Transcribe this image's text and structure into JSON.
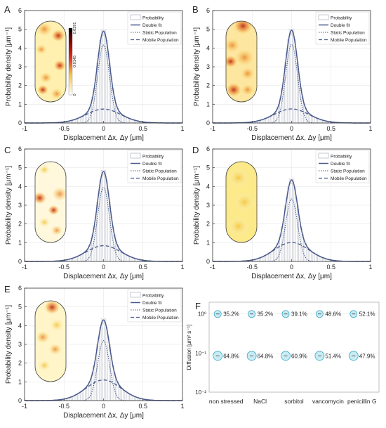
{
  "chart_data": [
    {
      "type": "bar",
      "panel_label": "A",
      "xlabel": "Displacement Δx, Δy [μm]",
      "ylabel": "Probability density [μm⁻¹]",
      "xlim": [
        -1,
        1
      ],
      "ylim": [
        0,
        6
      ],
      "xticks": [
        "-1",
        "-0.5",
        "0",
        "0.5",
        "1"
      ],
      "yticks": [
        "0",
        "1",
        "2",
        "3",
        "4",
        "5",
        "6"
      ],
      "legend": [
        "Probability",
        "Double fit",
        "Static Population",
        "Mobile Population"
      ],
      "legend_position": "top-right",
      "peak_double_fit": 4.9,
      "peak_static": 4.2,
      "peak_mobile": 0.75,
      "inset": "heatmap cell, heterogeneous with reddish spots",
      "colorbar_ticks": [
        "0.0291",
        "0.0145",
        "0"
      ]
    },
    {
      "type": "bar",
      "panel_label": "B",
      "xlabel": "Displacement Δx, Δy [μm]",
      "ylabel": "Probability density [μm⁻¹]",
      "xlim": [
        -1,
        1
      ],
      "ylim": [
        0,
        6
      ],
      "xticks": [
        "-1",
        "-0.5",
        "0",
        "0.5",
        "1"
      ],
      "yticks": [
        "0",
        "1",
        "2",
        "3",
        "4",
        "5",
        "6"
      ],
      "legend": [
        "Probability",
        "Double fit",
        "Static Population",
        "Mobile Population"
      ],
      "legend_position": "top-right",
      "peak_double_fit": 4.95,
      "peak_static": 4.2,
      "peak_mobile": 0.75
    },
    {
      "type": "bar",
      "panel_label": "C",
      "xlabel": "Displacement Δx, Δy [μm]",
      "ylabel": "Probability density [μm⁻¹]",
      "xlim": [
        -1,
        1
      ],
      "ylim": [
        0,
        6
      ],
      "xticks": [
        "-1",
        "-0.5",
        "0",
        "0.5",
        "1"
      ],
      "yticks": [
        "0",
        "1",
        "2",
        "3",
        "4",
        "5",
        "6"
      ],
      "legend": [
        "Probability",
        "Double fit",
        "Static Population",
        "Mobile Population"
      ],
      "legend_position": "top-right",
      "peak_double_fit": 4.8,
      "peak_static": 4.0,
      "peak_mobile": 0.85
    },
    {
      "type": "bar",
      "panel_label": "D",
      "xlabel": "Displacement Δx, Δy [μm]",
      "ylabel": "Probability density [μm⁻¹]",
      "xlim": [
        -1,
        1
      ],
      "ylim": [
        0,
        6
      ],
      "xticks": [
        "-1",
        "-0.5",
        "0",
        "0.5",
        "1"
      ],
      "yticks": [
        "0",
        "1",
        "2",
        "3",
        "4",
        "5",
        "6"
      ],
      "legend": [
        "Probability",
        "Double fit",
        "Static Population",
        "Mobile Population"
      ],
      "legend_position": "top-right",
      "peak_double_fit": 4.35,
      "peak_static": 3.3,
      "peak_mobile": 1.0
    },
    {
      "type": "bar",
      "panel_label": "E",
      "xlabel": "Displacement Δx, Δy [μm]",
      "ylabel": "Probability density [μm⁻¹]",
      "xlim": [
        -1,
        1
      ],
      "ylim": [
        0,
        6
      ],
      "xticks": [
        "-1",
        "-0.5",
        "0",
        "0.5",
        "1"
      ],
      "yticks": [
        "0",
        "1",
        "2",
        "3",
        "4",
        "5",
        "6"
      ],
      "legend": [
        "Probability",
        "Double fit",
        "Static Population",
        "Mobile Population"
      ],
      "legend_position": "top-right",
      "peak_double_fit": 4.3,
      "peak_static": 3.2,
      "peak_mobile": 1.1
    },
    {
      "type": "scatter",
      "panel_label": "F",
      "ylabel": "Diffusion [μm² s⁻¹]",
      "yscale": "log",
      "ylim": [
        0.01,
        2
      ],
      "yticks": [
        "10⁰",
        "10⁻¹",
        "10⁻²"
      ],
      "categories": [
        "non stressed",
        "NaCl",
        "sorbitol",
        "vancomycin",
        "penicillin G"
      ],
      "series": [
        {
          "values": [
            1.0,
            1.0,
            1.0,
            1.0,
            1.0
          ],
          "labels": [
            "35.2%",
            "35.2%",
            "39.1%",
            "48.6%",
            "52.1%"
          ]
        },
        {
          "values": [
            0.085,
            0.085,
            0.085,
            0.085,
            0.085
          ],
          "labels": [
            "64.8%",
            "64.8%",
            "60.9%",
            "51.4%",
            "47.9%"
          ]
        }
      ]
    }
  ],
  "colors": {
    "fit": "#4a5a8c",
    "bars": "#b8bcc6",
    "marker_face": "#c9ecf3",
    "marker_edge": "#3aa7c9",
    "grid": "#e6e6e6"
  }
}
